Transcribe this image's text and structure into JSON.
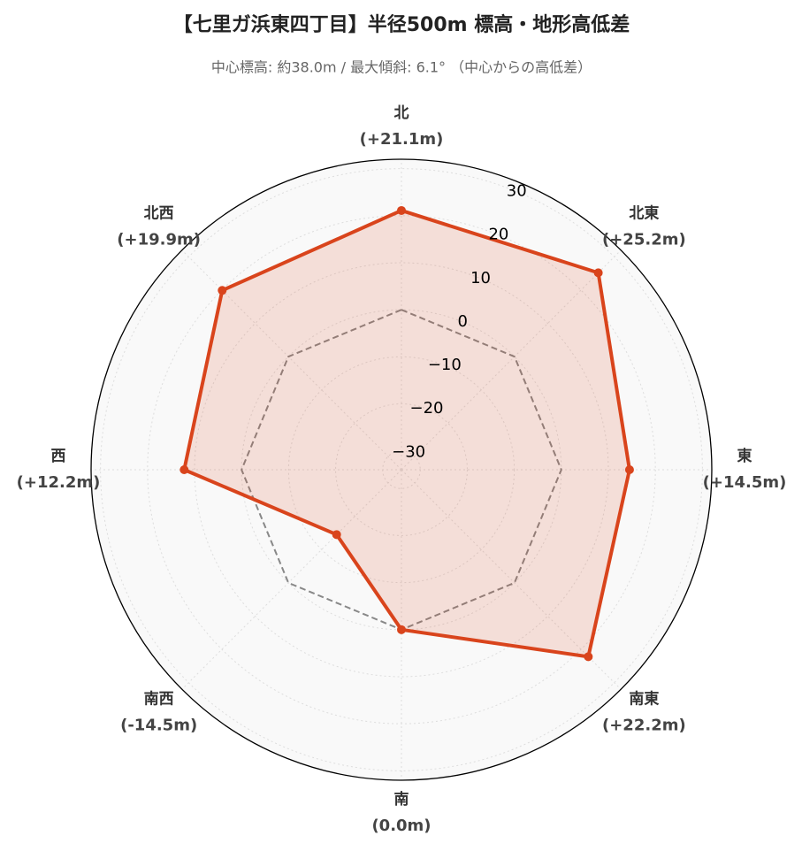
{
  "chart_data": {
    "type": "radar",
    "title": "【七里ガ浜東四丁目】半径500m 標高・地形高低差",
    "subtitle": "中心標高: 約38.0m / 最大傾斜: 6.1° （中心からの高低差）",
    "categories": [
      "北",
      "北東",
      "東",
      "南東",
      "南",
      "南西",
      "西",
      "北西"
    ],
    "values": [
      21.1,
      25.2,
      14.5,
      22.2,
      0.0,
      -14.5,
      12.2,
      19.9
    ],
    "value_labels": [
      "(+21.1m)",
      "(+25.2m)",
      "(+14.5m)",
      "(+22.2m)",
      "(0.0m)",
      "(-14.5m)",
      "(+12.2m)",
      "(+19.9m)"
    ],
    "color": "#d9441c",
    "ylim": [
      -34,
      32
    ],
    "yticks": [
      {
        "value": -30,
        "label": "−30"
      },
      {
        "value": -20,
        "label": "−20"
      },
      {
        "value": -10,
        "label": "−10"
      },
      0,
      10,
      20,
      30
    ],
    "reference_value": 0,
    "grid": true
  }
}
